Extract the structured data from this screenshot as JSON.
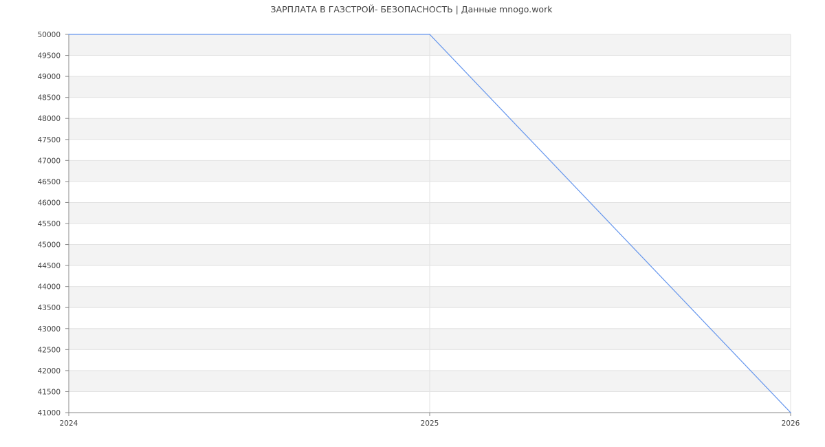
{
  "chart_data": {
    "type": "line",
    "title": "ЗАРПЛАТА В ГАЗСТРОЙ- БЕЗОПАСНОСТЬ | Данные mnogo.work",
    "xlabel": "",
    "ylabel": "",
    "x": [
      "2024",
      "2025",
      "2026"
    ],
    "series": [
      {
        "values": [
          50000,
          50000,
          41000
        ],
        "color": "#6495ed"
      }
    ],
    "ylim": [
      41000,
      50000
    ],
    "ytick_step": 500,
    "grid": true,
    "band_colors": [
      "#f3f3f3",
      "#ffffff"
    ],
    "grid_color": "#e2e2e2",
    "axis_color": "#888888"
  }
}
